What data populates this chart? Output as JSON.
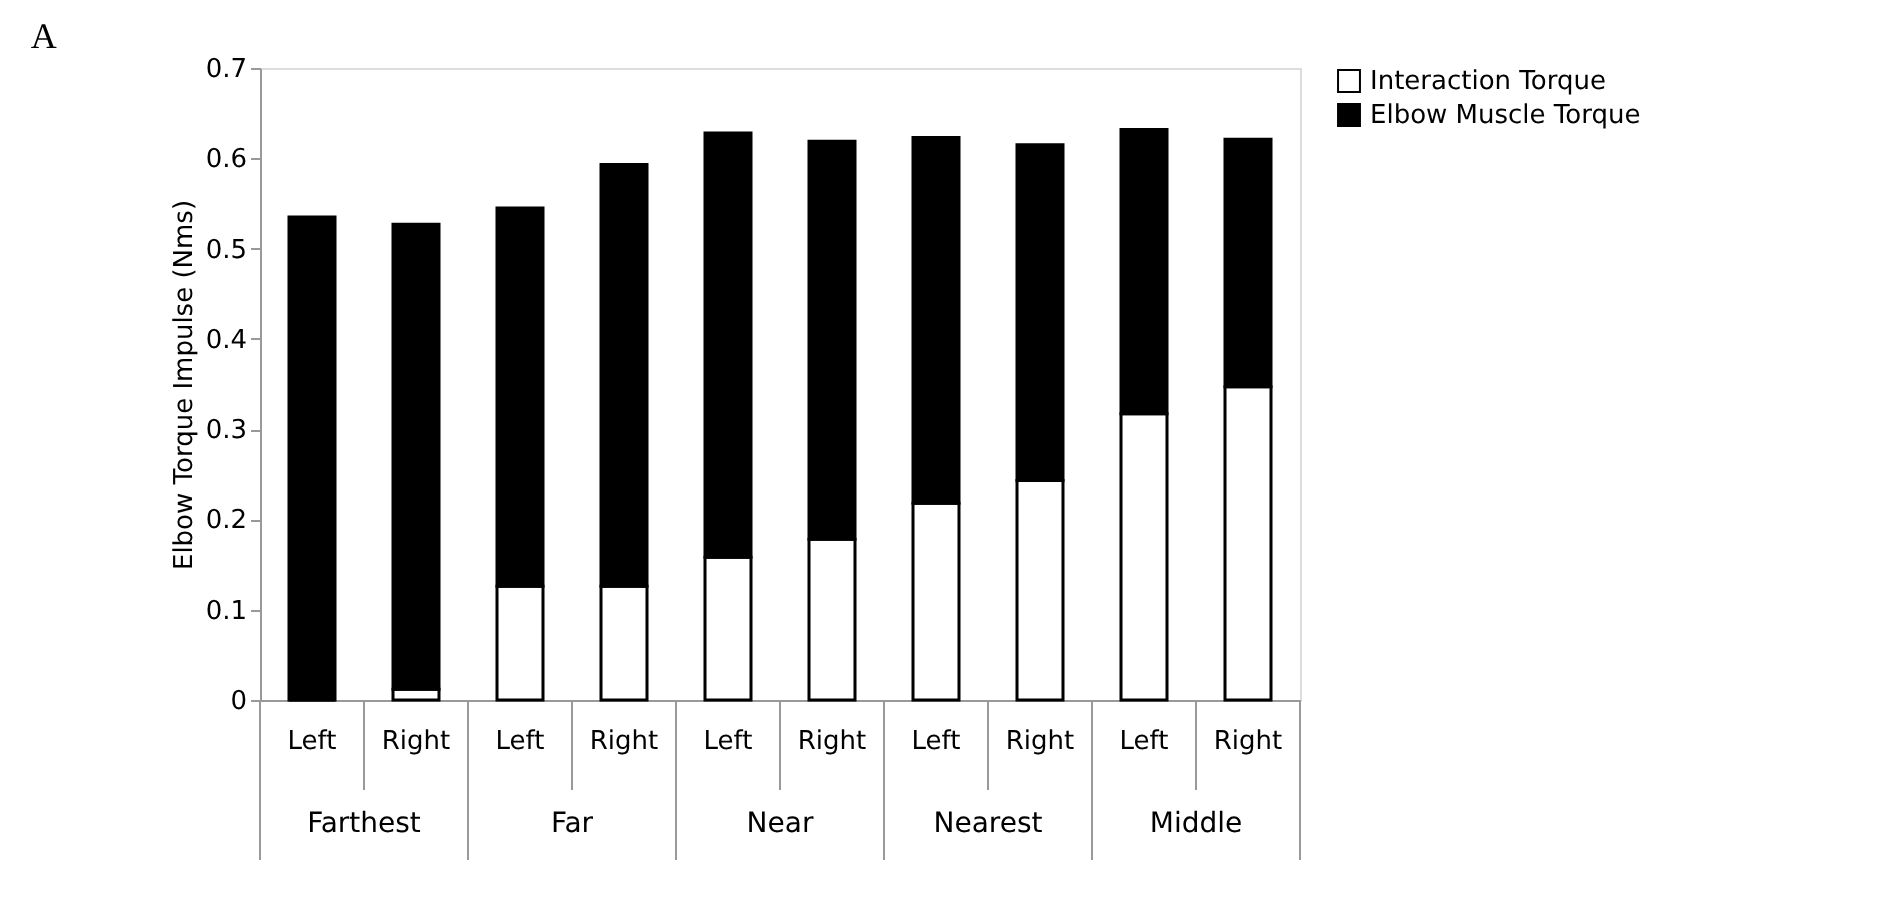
{
  "chart_data": {
    "type": "bar",
    "title": "A",
    "ylabel": "Elbow Torque Impulse (Nms)",
    "categories": [
      "Left",
      "Right",
      "Left",
      "Right",
      "Left",
      "Right",
      "Left",
      "Right",
      "Left",
      "Right"
    ],
    "stacked": true,
    "series": [
      {
        "name": "Interaction Torque",
        "color": "#ffffff",
        "values": [
          0,
          0.012,
          0.126,
          0.126,
          0.158,
          0.178,
          0.218,
          0.243,
          0.317,
          0.347
        ]
      },
      {
        "name": "Elbow Muscle Torque",
        "color": "#000000",
        "values": [
          0.535,
          0.515,
          0.419,
          0.467,
          0.47,
          0.441,
          0.405,
          0.372,
          0.315,
          0.274
        ]
      }
    ],
    "annotations": [
      "Farthest",
      "Far",
      "Near",
      "Nearest",
      "Middle"
    ],
    "ylim": [
      0,
      0.7
    ],
    "yticks": [
      {
        "value": 0,
        "label": "0"
      },
      0.1,
      0.2,
      0.3,
      0.4,
      0.5,
      0.6,
      0.7
    ],
    "grid": false,
    "legend": "right"
  }
}
